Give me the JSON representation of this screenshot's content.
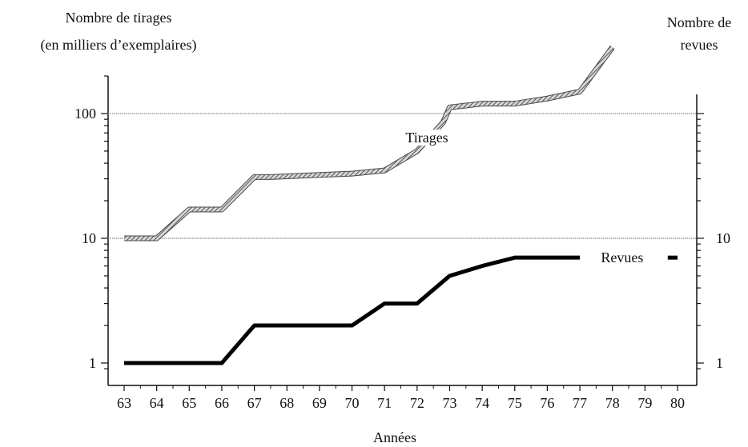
{
  "chart_data": {
    "type": "line",
    "y_scale": "log",
    "left_axis_title_line1": "Nombre de tirages",
    "left_axis_title_line2": "(en milliers d’exemplaires)",
    "right_axis_title_line1": "Nombre de",
    "right_axis_title_line2": "revues",
    "xlabel": "Années",
    "x_ticks": [
      "63",
      "64",
      "65",
      "66",
      "67",
      "68",
      "69",
      "70",
      "71",
      "72",
      "73",
      "74",
      "75",
      "76",
      "77",
      "78",
      "79",
      "80"
    ],
    "x_range": [
      63,
      80
    ],
    "left_y_ticks": [
      {
        "value": 1,
        "label": "1"
      },
      {
        "value": 10,
        "label": "10"
      },
      {
        "value": 100,
        "label": "100"
      }
    ],
    "right_y_ticks": [
      {
        "value": 1,
        "label": "1"
      },
      {
        "value": 10,
        "label": "10"
      }
    ],
    "y_range": [
      0.85,
      450
    ],
    "reference_lines": [
      10,
      100
    ],
    "series": [
      {
        "name": "Tirages",
        "style": "hatched",
        "color": "#9a9a9a",
        "x": [
          63,
          64,
          65,
          65.3,
          66,
          67,
          67.5,
          70,
          71,
          72,
          72.8,
          73,
          74,
          75,
          76,
          77,
          78
        ],
        "y": [
          10,
          10,
          17,
          17,
          17,
          31,
          31,
          33,
          35,
          50,
          85,
          112,
          120,
          120,
          132,
          150,
          340
        ]
      },
      {
        "name": "Revues",
        "style": "solid",
        "color": "#000000",
        "x": [
          63,
          66,
          67,
          70,
          71,
          72,
          73,
          74,
          75,
          77
        ],
        "y": [
          1,
          1,
          2,
          2,
          3,
          3,
          5,
          6,
          7,
          7
        ],
        "tail_segment": {
          "x": [
            79.7,
            80
          ],
          "y": [
            7,
            7
          ]
        }
      }
    ]
  }
}
